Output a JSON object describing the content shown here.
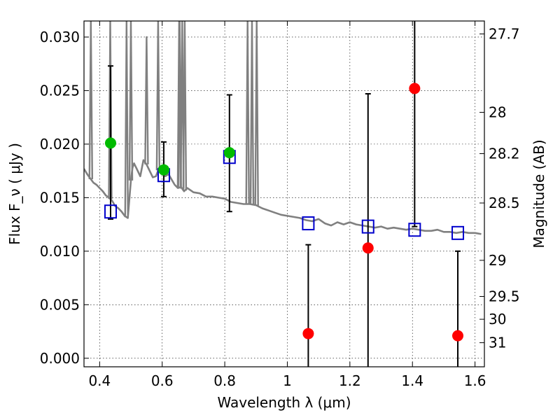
{
  "chart_data": {
    "type": "scatter",
    "xlabel": "Wavelength  λ (μm)",
    "ylabel": "Flux  F_ν  ( μJy )",
    "ylabel_right": "Magnitude (AB)",
    "xlim": [
      0.35,
      1.63
    ],
    "ylim": [
      -0.0008,
      0.0315
    ],
    "grid": true,
    "legend": "none",
    "x_ticks": [
      {
        "value": 0.4,
        "label": "0.4"
      },
      {
        "value": 0.6,
        "label": "0.6"
      },
      {
        "value": 0.8,
        "label": "0.8"
      },
      {
        "value": 1.0,
        "label": "1"
      },
      {
        "value": 1.2,
        "label": "1.2"
      },
      {
        "value": 1.4,
        "label": "1.4"
      },
      {
        "value": 1.6,
        "label": "1.6"
      }
    ],
    "y_ticks": [
      {
        "value": 0.0,
        "label": "0.000"
      },
      {
        "value": 0.005,
        "label": "0.005"
      },
      {
        "value": 0.01,
        "label": "0.010"
      },
      {
        "value": 0.015,
        "label": "0.015"
      },
      {
        "value": 0.02,
        "label": "0.020"
      },
      {
        "value": 0.025,
        "label": "0.025"
      },
      {
        "value": 0.03,
        "label": "0.030"
      }
    ],
    "right_ticks": [
      {
        "label": "27.7",
        "flux": 0.03029
      },
      {
        "label": "28",
        "flux": 0.02297
      },
      {
        "label": "28.2",
        "flux": 0.01911
      },
      {
        "label": "28.5",
        "flux": 0.0145
      },
      {
        "label": "29",
        "flux": 0.009145
      },
      {
        "label": "29.5",
        "flux": 0.00577
      },
      {
        "label": "30",
        "flux": 0.00364
      },
      {
        "label": "31",
        "flux": 0.00145
      }
    ],
    "colors": {
      "sed": "#808080",
      "measured_good": "#00bb00",
      "measured_low": "#ff0000",
      "model": "#0000cc",
      "errorbar": "#000000"
    },
    "series": [
      {
        "role": "sed_template",
        "x": [
          0.35,
          0.36,
          0.37,
          0.38,
          0.39,
          0.4,
          0.41,
          0.42,
          0.43,
          0.44,
          0.45,
          0.46,
          0.47,
          0.48,
          0.49,
          0.5,
          0.505,
          0.51,
          0.52,
          0.53,
          0.54,
          0.55,
          0.56,
          0.57,
          0.58,
          0.59,
          0.6,
          0.61,
          0.62,
          0.63,
          0.64,
          0.65,
          0.66,
          0.67,
          0.68,
          0.69,
          0.7,
          0.72,
          0.74,
          0.76,
          0.78,
          0.8,
          0.82,
          0.84,
          0.86,
          0.88,
          0.9,
          0.92,
          0.94,
          0.96,
          0.98,
          1.0,
          1.02,
          1.04,
          1.06,
          1.08,
          1.1,
          1.12,
          1.14,
          1.16,
          1.18,
          1.2,
          1.22,
          1.24,
          1.26,
          1.28,
          1.3,
          1.32,
          1.34,
          1.36,
          1.38,
          1.4,
          1.42,
          1.44,
          1.46,
          1.48,
          1.5,
          1.52,
          1.54,
          1.56,
          1.58,
          1.6,
          1.62
        ],
        "y": [
          0.0177,
          0.0172,
          0.0168,
          0.0164,
          0.0162,
          0.0159,
          0.0156,
          0.0152,
          0.015,
          0.0147,
          0.0142,
          0.014,
          0.0137,
          0.0133,
          0.0131,
          0.0166,
          0.0178,
          0.0182,
          0.0176,
          0.017,
          0.0185,
          0.0181,
          0.0175,
          0.0169,
          0.017,
          0.0178,
          0.0175,
          0.017,
          0.0172,
          0.0167,
          0.0162,
          0.0159,
          0.016,
          0.0156,
          0.0159,
          0.0157,
          0.0155,
          0.0154,
          0.0151,
          0.0151,
          0.015,
          0.0149,
          0.0146,
          0.0145,
          0.0144,
          0.0144,
          0.0143,
          0.014,
          0.0138,
          0.0136,
          0.0134,
          0.0133,
          0.0132,
          0.0131,
          0.0129,
          0.0128,
          0.013,
          0.0126,
          0.0124,
          0.0127,
          0.0125,
          0.0127,
          0.0125,
          0.0124,
          0.0123,
          0.0122,
          0.0123,
          0.0121,
          0.0122,
          0.0121,
          0.012,
          0.0121,
          0.012,
          0.0119,
          0.0119,
          0.012,
          0.0118,
          0.0118,
          0.0117,
          0.0118,
          0.0117,
          0.0117,
          0.0116
        ]
      },
      {
        "role": "emission_lines",
        "x": [
          0.372,
          0.434,
          0.486,
          0.5,
          0.55,
          0.587,
          0.654,
          0.656,
          0.664,
          0.672,
          0.873,
          0.887,
          0.902
        ],
        "peak": [
          0.0315,
          0.0315,
          0.0315,
          0.0315,
          0.03,
          0.0315,
          0.0315,
          0.0315,
          0.0315,
          0.0315,
          0.0315,
          0.0315,
          0.0315
        ]
      },
      {
        "role": "errorbars",
        "x": [
          0.435,
          0.605,
          0.815,
          1.067,
          1.258,
          1.407,
          1.545
        ],
        "low": [
          0.013,
          0.0151,
          0.0137,
          -0.0008,
          -0.0008,
          0.0123,
          -0.0008
        ],
        "high": [
          0.0273,
          0.0202,
          0.0246,
          0.0106,
          0.0247,
          0.0315,
          0.01
        ]
      },
      {
        "role": "measured_flux_good",
        "x": [
          0.435,
          0.605,
          0.815
        ],
        "y": [
          0.0201,
          0.0176,
          0.0192
        ]
      },
      {
        "role": "measured_flux_low",
        "x": [
          1.067,
          1.258,
          1.407,
          1.545
        ],
        "y": [
          0.0023,
          0.0103,
          0.0252,
          0.0021
        ]
      },
      {
        "role": "model_flux",
        "x": [
          0.435,
          0.605,
          0.815,
          1.067,
          1.258,
          1.407,
          1.545
        ],
        "y": [
          0.0137,
          0.0171,
          0.0188,
          0.0126,
          0.0123,
          0.012,
          0.0117
        ]
      }
    ]
  }
}
